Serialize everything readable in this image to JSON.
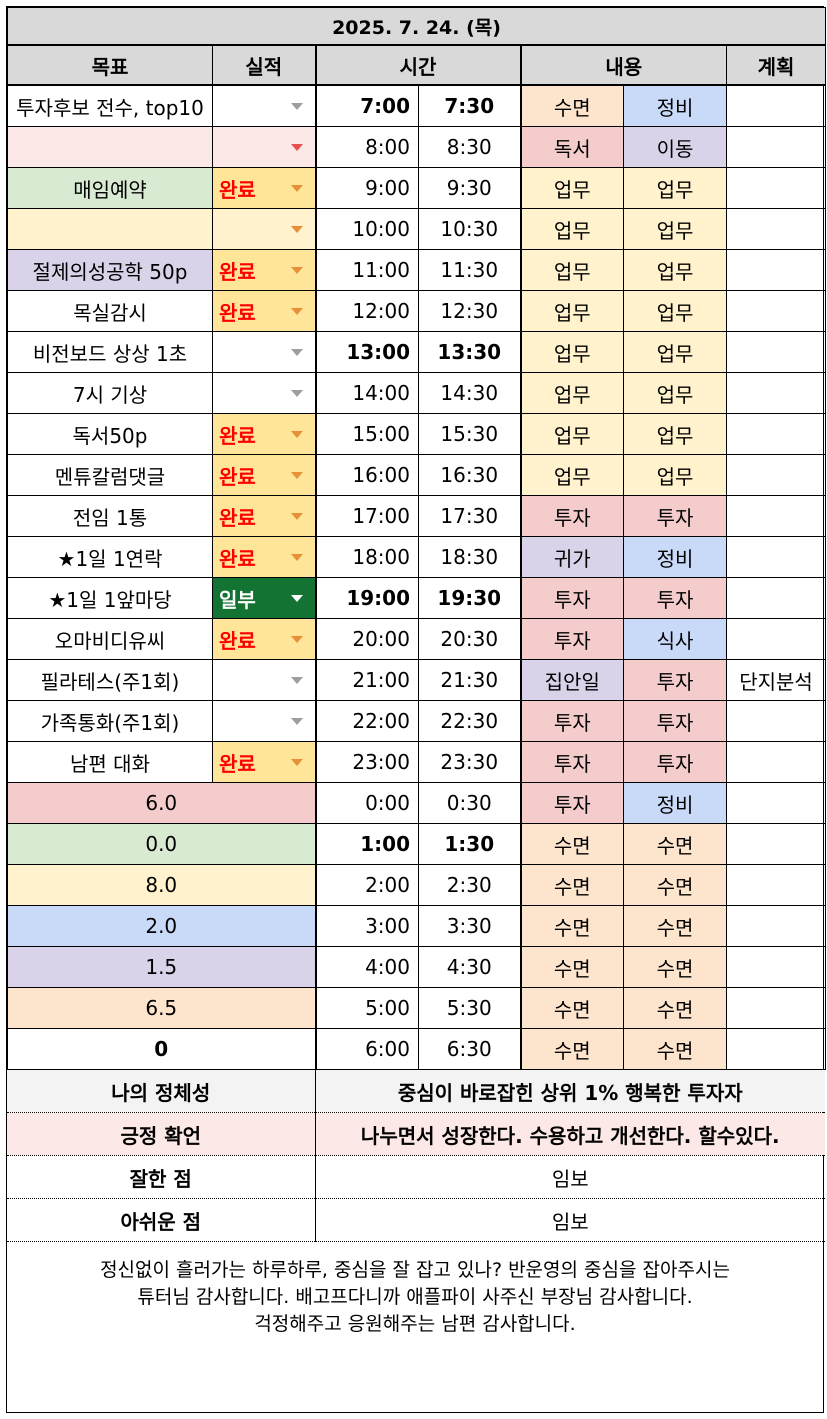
{
  "date_title": "2025. 7. 24. (목)",
  "headers": {
    "goal": "목표",
    "result": "실적",
    "time": "시간",
    "content": "내용",
    "plan": "계획"
  },
  "rows": [
    {
      "goal": "투자후보 전수, top10",
      "goal_color": "",
      "result": "",
      "result_style": "none",
      "t1": "7:00",
      "t2": "7:30",
      "bold": true,
      "c1": "수면",
      "c1_color": "peach",
      "c2": "정비",
      "c2_color": "blue",
      "plan": ""
    },
    {
      "goal": "",
      "goal_color": "rose",
      "result": "",
      "result_style": "red",
      "t1": "8:00",
      "t2": "8:30",
      "bold": false,
      "c1": "독서",
      "c1_color": "pink",
      "c2": "이동",
      "c2_color": "lav",
      "plan": ""
    },
    {
      "goal": "매임예약",
      "goal_color": "green",
      "result": "완료",
      "result_style": "done",
      "t1": "9:00",
      "t2": "9:30",
      "bold": false,
      "c1": "업무",
      "c1_color": "yel",
      "c2": "업무",
      "c2_color": "yel",
      "plan": ""
    },
    {
      "goal": "",
      "goal_color": "yel",
      "result": "",
      "result_style": "orange",
      "t1": "10:00",
      "t2": "10:30",
      "bold": false,
      "c1": "업무",
      "c1_color": "yel",
      "c2": "업무",
      "c2_color": "yel",
      "plan": ""
    },
    {
      "goal": "절제의성공학 50p",
      "goal_color": "lav",
      "result": "완료",
      "result_style": "done",
      "t1": "11:00",
      "t2": "11:30",
      "bold": false,
      "c1": "업무",
      "c1_color": "yel",
      "c2": "업무",
      "c2_color": "yel",
      "plan": ""
    },
    {
      "goal": "목실감시",
      "goal_color": "",
      "result": "완료",
      "result_style": "done",
      "t1": "12:00",
      "t2": "12:30",
      "bold": false,
      "c1": "업무",
      "c1_color": "yel",
      "c2": "업무",
      "c2_color": "yel",
      "plan": ""
    },
    {
      "goal": "비전보드 상상 1초",
      "goal_color": "",
      "result": "",
      "result_style": "none",
      "t1": "13:00",
      "t2": "13:30",
      "bold": true,
      "c1": "업무",
      "c1_color": "yel",
      "c2": "업무",
      "c2_color": "yel",
      "plan": ""
    },
    {
      "goal": "7시 기상",
      "goal_color": "",
      "result": "",
      "result_style": "none",
      "t1": "14:00",
      "t2": "14:30",
      "bold": false,
      "c1": "업무",
      "c1_color": "yel",
      "c2": "업무",
      "c2_color": "yel",
      "plan": ""
    },
    {
      "goal": "독서50p",
      "goal_color": "",
      "result": "완료",
      "result_style": "done",
      "t1": "15:00",
      "t2": "15:30",
      "bold": false,
      "c1": "업무",
      "c1_color": "yel",
      "c2": "업무",
      "c2_color": "yel",
      "plan": ""
    },
    {
      "goal": "멘튜칼럼댓글",
      "goal_color": "",
      "result": "완료",
      "result_style": "done",
      "t1": "16:00",
      "t2": "16:30",
      "bold": false,
      "c1": "업무",
      "c1_color": "yel",
      "c2": "업무",
      "c2_color": "yel",
      "plan": ""
    },
    {
      "goal": "전임 1통",
      "goal_color": "",
      "result": "완료",
      "result_style": "done",
      "t1": "17:00",
      "t2": "17:30",
      "bold": false,
      "c1": "투자",
      "c1_color": "pink",
      "c2": "투자",
      "c2_color": "pink",
      "plan": ""
    },
    {
      "goal": "★1일 1연락",
      "goal_color": "",
      "result": "완료",
      "result_style": "done",
      "t1": "18:00",
      "t2": "18:30",
      "bold": false,
      "c1": "귀가",
      "c1_color": "lav",
      "c2": "정비",
      "c2_color": "blue",
      "plan": ""
    },
    {
      "goal": "★1일 1앞마당",
      "goal_color": "",
      "result": "일부",
      "result_style": "partial",
      "t1": "19:00",
      "t2": "19:30",
      "bold": true,
      "c1": "투자",
      "c1_color": "pink",
      "c2": "투자",
      "c2_color": "pink",
      "plan": ""
    },
    {
      "goal": "오마비디유씨",
      "goal_color": "",
      "result": "완료",
      "result_style": "done",
      "t1": "20:00",
      "t2": "20:30",
      "bold": false,
      "c1": "투자",
      "c1_color": "pink",
      "c2": "식사",
      "c2_color": "blue",
      "plan": ""
    },
    {
      "goal": "필라테스(주1회)",
      "goal_color": "",
      "result": "",
      "result_style": "none",
      "t1": "21:00",
      "t2": "21:30",
      "bold": false,
      "c1": "집안일",
      "c1_color": "lav",
      "c2": "투자",
      "c2_color": "pink",
      "plan": "단지분석"
    },
    {
      "goal": "가족통화(주1회)",
      "goal_color": "",
      "result": "",
      "result_style": "none",
      "t1": "22:00",
      "t2": "22:30",
      "bold": false,
      "c1": "투자",
      "c1_color": "pink",
      "c2": "투자",
      "c2_color": "pink",
      "plan": ""
    },
    {
      "goal": "남편 대화",
      "goal_color": "",
      "result": "완료",
      "result_style": "done",
      "t1": "23:00",
      "t2": "23:30",
      "bold": false,
      "c1": "투자",
      "c1_color": "pink",
      "c2": "투자",
      "c2_color": "pink",
      "plan": ""
    }
  ],
  "summary_rows": [
    {
      "value": "6.0",
      "color": "pink",
      "t1": "0:00",
      "t2": "0:30",
      "bold": false,
      "c1": "투자",
      "c1_color": "pink",
      "c2": "정비",
      "c2_color": "blue"
    },
    {
      "value": "0.0",
      "color": "green",
      "t1": "1:00",
      "t2": "1:30",
      "bold": true,
      "c1": "수면",
      "c1_color": "peach",
      "c2": "수면",
      "c2_color": "peach"
    },
    {
      "value": "8.0",
      "color": "yel",
      "t1": "2:00",
      "t2": "2:30",
      "bold": false,
      "c1": "수면",
      "c1_color": "peach",
      "c2": "수면",
      "c2_color": "peach"
    },
    {
      "value": "2.0",
      "color": "blue",
      "t1": "3:00",
      "t2": "3:30",
      "bold": false,
      "c1": "수면",
      "c1_color": "peach",
      "c2": "수면",
      "c2_color": "peach"
    },
    {
      "value": "1.5",
      "color": "lav",
      "t1": "4:00",
      "t2": "4:30",
      "bold": false,
      "c1": "수면",
      "c1_color": "peach",
      "c2": "수면",
      "c2_color": "peach"
    },
    {
      "value": "6.5",
      "color": "peach",
      "t1": "5:00",
      "t2": "5:30",
      "bold": false,
      "c1": "수면",
      "c1_color": "peach",
      "c2": "수면",
      "c2_color": "peach"
    },
    {
      "value": "0",
      "color": "",
      "bold_value": true,
      "t1": "6:00",
      "t2": "6:30",
      "bold": false,
      "c1": "수면",
      "c1_color": "peach",
      "c2": "수면",
      "c2_color": "peach"
    }
  ],
  "identity": {
    "label": "나의 정체성",
    "value": "중심이 바로잡힌 상위 1% 행복한 투자자"
  },
  "affirmation": {
    "label": "긍정 확언",
    "value": "나누면서 성장한다. 수용하고 개선한다. 할수있다."
  },
  "did_well": {
    "label": "잘한 점",
    "value": "임보"
  },
  "regret": {
    "label": "아쉬운 점",
    "value": "임보"
  },
  "message": {
    "line1": "정신없이 흘러가는 하루하루, 중심을 잘 잡고 있나? 반운영의 중심을 잡아주시는",
    "line2": "튜터님 감사합니다. 배고프다니까 애플파이 사주신 부장님 감사합니다.",
    "line3": "걱정해주고 응원해주는 남편 감사합니다."
  }
}
